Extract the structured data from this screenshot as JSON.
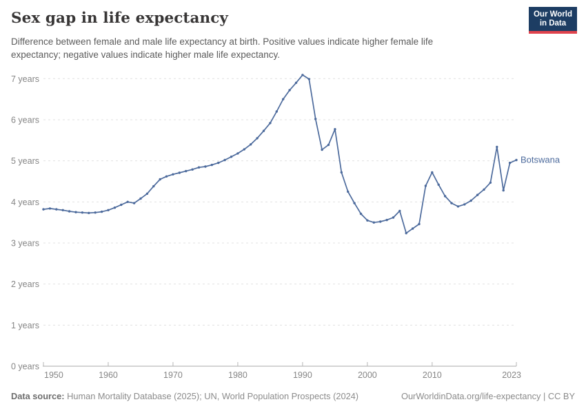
{
  "header": {
    "title": "Sex gap in life expectancy",
    "subtitle_line1": "Difference between female and male life expectancy at birth. Positive values indicate higher female life",
    "subtitle_line2": "expectancy; negative values indicate higher male life expectancy.",
    "logo": {
      "line1": "Our World",
      "line2": "in Data",
      "bg_color": "#1d3d63",
      "accent_color": "#e0434d"
    }
  },
  "chart_data": {
    "type": "line",
    "title": "Sex gap in life expectancy",
    "entity_label": "Botswana",
    "line_color": "#4c6a9c",
    "grid": true,
    "legend_position": "end-of-line",
    "xlabel": "",
    "ylabel": "",
    "xlim": [
      1950,
      2023
    ],
    "ylim": [
      0,
      7.3
    ],
    "x_ticks": [
      {
        "value": 1950,
        "label": "1950"
      },
      {
        "value": 1960,
        "label": "1960"
      },
      {
        "value": 1970,
        "label": "1970"
      },
      {
        "value": 1980,
        "label": "1980"
      },
      {
        "value": 1990,
        "label": "1990"
      },
      {
        "value": 2000,
        "label": "2000"
      },
      {
        "value": 2010,
        "label": "2010"
      },
      {
        "value": 2023,
        "label": "2023"
      }
    ],
    "y_ticks": [
      {
        "value": 0,
        "label": "0 years"
      },
      {
        "value": 1,
        "label": "1 years"
      },
      {
        "value": 2,
        "label": "2 years"
      },
      {
        "value": 3,
        "label": "3 years"
      },
      {
        "value": 4,
        "label": "4 years"
      },
      {
        "value": 5,
        "label": "5 years"
      },
      {
        "value": 6,
        "label": "6 years"
      },
      {
        "value": 7,
        "label": "7 years"
      }
    ],
    "series": [
      {
        "name": "Botswana",
        "color": "#4c6a9c",
        "x": [
          1950,
          1951,
          1952,
          1953,
          1954,
          1955,
          1956,
          1957,
          1958,
          1959,
          1960,
          1961,
          1962,
          1963,
          1964,
          1965,
          1966,
          1967,
          1968,
          1969,
          1970,
          1971,
          1972,
          1973,
          1974,
          1975,
          1976,
          1977,
          1978,
          1979,
          1980,
          1981,
          1982,
          1983,
          1984,
          1985,
          1986,
          1987,
          1988,
          1989,
          1990,
          1991,
          1992,
          1993,
          1994,
          1995,
          1996,
          1997,
          1998,
          1999,
          2000,
          2001,
          2002,
          2003,
          2004,
          2005,
          2006,
          2007,
          2008,
          2009,
          2010,
          2011,
          2012,
          2013,
          2014,
          2015,
          2016,
          2017,
          2018,
          2019,
          2020,
          2021,
          2022,
          2023
        ],
        "values": [
          3.82,
          3.84,
          3.82,
          3.8,
          3.77,
          3.75,
          3.74,
          3.73,
          3.74,
          3.76,
          3.8,
          3.86,
          3.93,
          4.0,
          3.97,
          4.08,
          4.2,
          4.38,
          4.55,
          4.62,
          4.67,
          4.71,
          4.75,
          4.79,
          4.84,
          4.86,
          4.9,
          4.95,
          5.02,
          5.1,
          5.18,
          5.28,
          5.4,
          5.55,
          5.73,
          5.92,
          6.2,
          6.5,
          6.72,
          6.9,
          7.09,
          6.99,
          6.02,
          5.27,
          5.39,
          5.77,
          4.72,
          4.25,
          3.97,
          3.71,
          3.55,
          3.5,
          3.52,
          3.56,
          3.62,
          3.78,
          3.24,
          3.35,
          3.46,
          4.39,
          4.72,
          4.42,
          4.14,
          3.97,
          3.89,
          3.94,
          4.03,
          4.17,
          4.3,
          4.47,
          5.34,
          4.28,
          4.95,
          5.02
        ]
      }
    ]
  },
  "footer": {
    "source_label": "Data source:",
    "source_text": "Human Mortality Database (2025); UN, World Population Prospects (2024)",
    "right_text": "OurWorldinData.org/life-expectancy | CC BY"
  }
}
